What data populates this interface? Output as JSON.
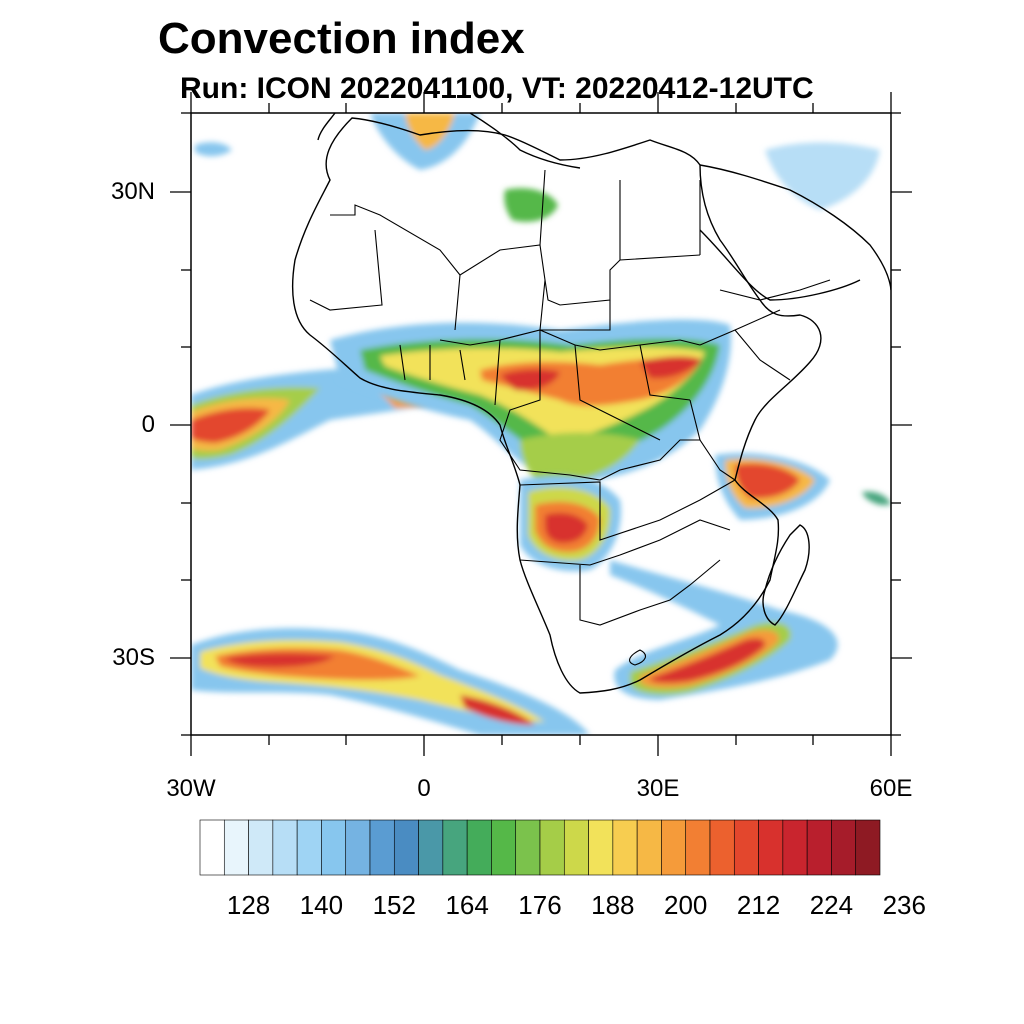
{
  "title": "Convection index",
  "subtitle": "Run: ICON 2022041100,  VT: 20220412-12UTC",
  "map": {
    "projection": "cylindrical equidistant",
    "region": "Africa",
    "lon_range": [
      -30,
      60
    ],
    "lat_range": [
      -40,
      40
    ],
    "lat_ticks": [
      {
        "label": "30N",
        "lat": 30
      },
      {
        "label": "0",
        "lat": 0
      },
      {
        "label": "30S",
        "lat": -30
      }
    ],
    "lon_ticks": [
      {
        "label": "30W",
        "lon": -30
      },
      {
        "label": "0",
        "lon": 0
      },
      {
        "label": "30E",
        "lon": 30
      },
      {
        "label": "60E",
        "lon": 60
      }
    ]
  },
  "colorbar": {
    "colors": [
      "#ffffff",
      "#e8f5fc",
      "#cfe9f8",
      "#b7def6",
      "#9fd4f4",
      "#87c6ee",
      "#75b3e2",
      "#5a9cd2",
      "#4a8cc2",
      "#4a98a8",
      "#47a57e",
      "#44ac5a",
      "#55b848",
      "#7bc24c",
      "#a5cd48",
      "#cdd84a",
      "#f2e25a",
      "#f7cd50",
      "#f6b845",
      "#f59b3a",
      "#f27f33",
      "#ec612e",
      "#e3472d",
      "#d8312d",
      "#c9252e",
      "#b91f2d",
      "#a61c2a",
      "#8e1a23"
    ],
    "labels": [
      "128",
      "140",
      "152",
      "164",
      "176",
      "188",
      "200",
      "212",
      "224",
      "236"
    ]
  }
}
